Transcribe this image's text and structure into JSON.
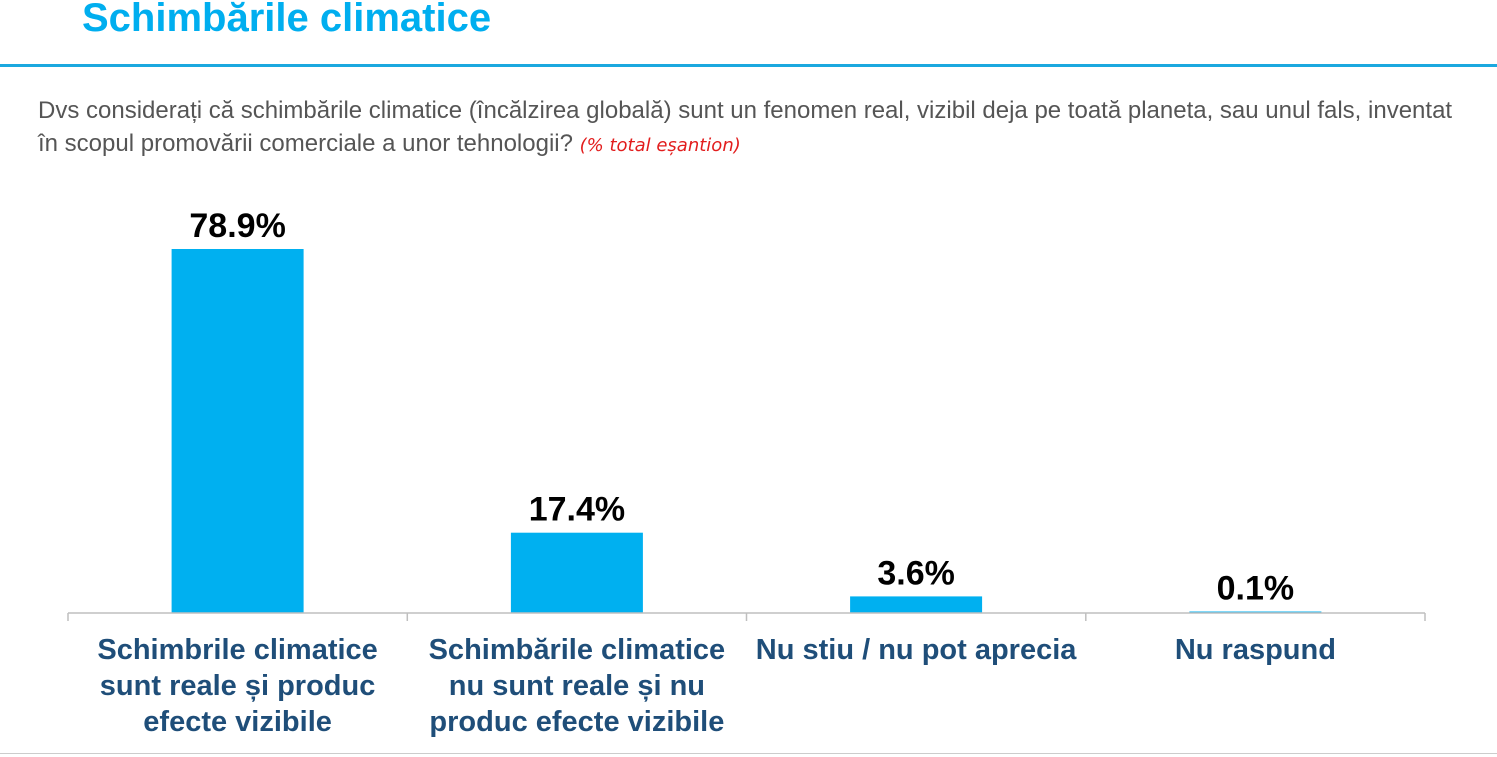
{
  "header": {
    "title": "Schimbările climatice"
  },
  "question": {
    "text": "Dvs considerați că schimbările climatice (încălzirea globală) sunt un fenomen real, vizibil deja pe toată planeta, sau unul fals, inventat în scopul promovării comerciale a unor tehnologii?",
    "base_note": "(% total eșantion)"
  },
  "colors": {
    "accent": "#00aeef",
    "bar": "#00b0f0",
    "category_text": "#1f4e79",
    "note_red": "#e21d1d"
  },
  "chart_data": {
    "type": "bar",
    "categories": [
      "Schimbrile climatice sunt reale și produc efecte vizibile",
      "Schimbările climatice nu sunt reale și nu produc efecte vizibile",
      "Nu stiu / nu pot aprecia",
      "Nu raspund"
    ],
    "values": [
      78.9,
      17.4,
      3.6,
      0.1
    ],
    "value_labels": [
      "78.9%",
      "17.4%",
      "3.6%",
      "0.1%"
    ],
    "unit": "%",
    "ylim": [
      0,
      80
    ],
    "grid": false,
    "legend": "none"
  }
}
